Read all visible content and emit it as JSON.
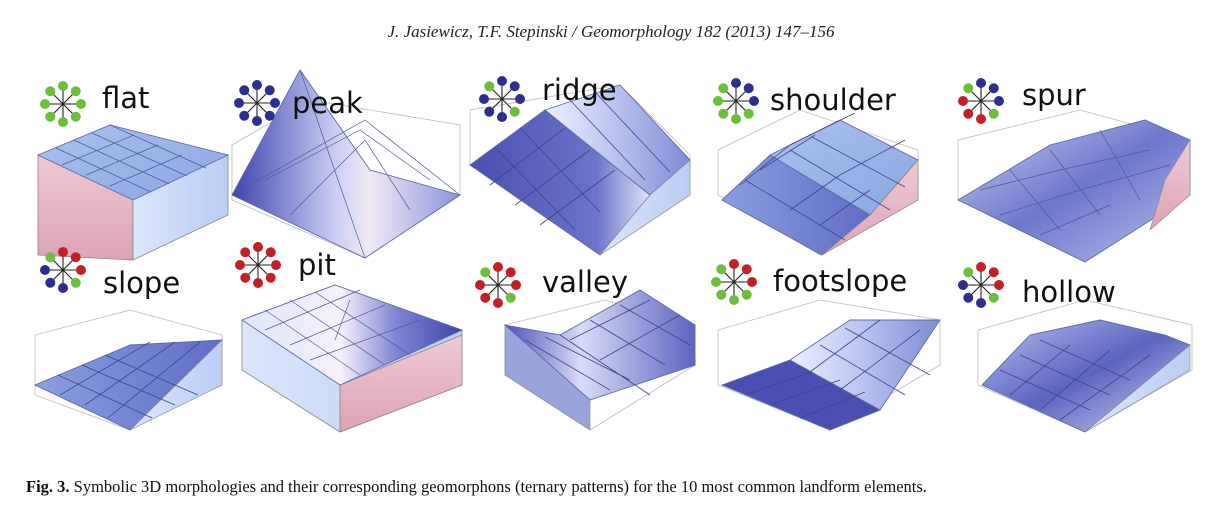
{
  "header": {
    "running_head": "J. Jasiewicz, T.F. Stepinski / Geomorphology 182 (2013) 147–156"
  },
  "colors": {
    "plus": "#6bbf3b",
    "minus": "#c41f25",
    "zero": "#2c2f8f"
  },
  "panels": [
    {
      "id": "flat",
      "label": "flat",
      "pattern": [
        "plus",
        "plus",
        "plus",
        "plus",
        "plus",
        "plus",
        "plus",
        "plus"
      ]
    },
    {
      "id": "peak",
      "label": "peak",
      "pattern": [
        "zero",
        "zero",
        "zero",
        "zero",
        "zero",
        "zero",
        "zero",
        "zero"
      ]
    },
    {
      "id": "ridge",
      "label": "ridge",
      "pattern": [
        "zero",
        "zero",
        "zero",
        "plus",
        "zero",
        "zero",
        "zero",
        "plus"
      ]
    },
    {
      "id": "shoulder",
      "label": "shoulder",
      "pattern": [
        "zero",
        "zero",
        "zero",
        "plus",
        "plus",
        "plus",
        "plus",
        "plus"
      ]
    },
    {
      "id": "spur",
      "label": "spur",
      "pattern": [
        "zero",
        "zero",
        "zero",
        "plus",
        "minus",
        "minus",
        "minus",
        "plus"
      ]
    },
    {
      "id": "slope",
      "label": "slope",
      "pattern": [
        "minus",
        "minus",
        "minus",
        "plus",
        "zero",
        "zero",
        "zero",
        "plus"
      ]
    },
    {
      "id": "pit",
      "label": "pit",
      "pattern": [
        "minus",
        "minus",
        "minus",
        "minus",
        "minus",
        "minus",
        "minus",
        "minus"
      ]
    },
    {
      "id": "valley",
      "label": "valley",
      "pattern": [
        "minus",
        "minus",
        "minus",
        "plus",
        "minus",
        "minus",
        "minus",
        "plus"
      ]
    },
    {
      "id": "footslope",
      "label": "footslope",
      "pattern": [
        "minus",
        "minus",
        "minus",
        "plus",
        "plus",
        "plus",
        "plus",
        "plus"
      ]
    },
    {
      "id": "hollow",
      "label": "hollow",
      "pattern": [
        "minus",
        "minus",
        "minus",
        "plus",
        "zero",
        "zero",
        "zero",
        "plus"
      ]
    }
  ],
  "caption": {
    "label": "Fig. 3.",
    "text": " Symbolic 3D morphologies and their corresponding geomorphons (ternary patterns) for the 10 most common landform elements."
  }
}
